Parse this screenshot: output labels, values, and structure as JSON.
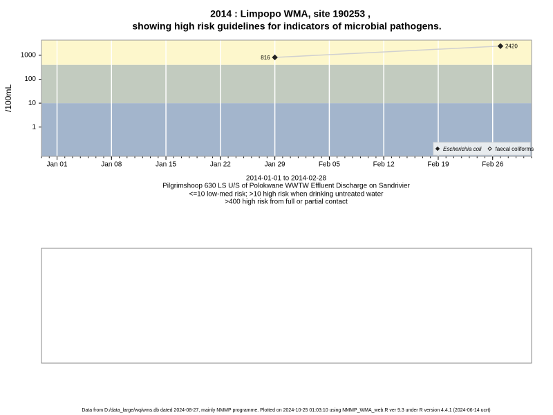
{
  "chart_data": {
    "type": "line",
    "title": [
      "2014 : Limpopo WMA, site 190253 ,",
      "showing high risk guidelines for indicators of microbial pathogens."
    ],
    "y_label": "/100mL",
    "subtitle": [
      "2014-01-01 to 2014-02-28",
      "Pilgrimshoop 630 LS U/S of Polokwane WWTW Effluent Discharge on Sandrivier",
      "<=10 low-med risk; >10 high risk when drinking untreated water",
      ">400 high risk from full or partial contact"
    ],
    "footer": "Data from D:/data_large/wq/wms.db dated 2024-08-27, mainly NMMP programme. Plotted on 2024-10-25 01:03:10 using NMMP_WMA_web.R ver 9.3 under R version 4.4.1 (2024-06-14 ucrt)",
    "x": [
      "2014-01-29",
      "2014-02-27"
    ],
    "series": [
      {
        "name": "Escherichia coli",
        "color": "#222222",
        "line_color": "#d0d0d0",
        "marker": "filled-diamond",
        "values": [
          816,
          2420
        ]
      },
      {
        "name": "faecal coliforms",
        "color": "#222222",
        "marker": "open-diamond",
        "values": [
          null,
          null
        ]
      }
    ],
    "xlim": [
      "2013-12-30",
      "2014-03-03"
    ],
    "xticks": [
      {
        "value": "2014-01-01",
        "label": "Jan 01"
      },
      {
        "value": "2014-01-08",
        "label": "Jan 08"
      },
      {
        "value": "2014-01-15",
        "label": "Jan 15"
      },
      {
        "value": "2014-01-22",
        "label": "Jan 22"
      },
      {
        "value": "2014-01-29",
        "label": "Jan 29"
      },
      {
        "value": "2014-02-05",
        "label": "Feb 05"
      },
      {
        "value": "2014-02-12",
        "label": "Feb 12"
      },
      {
        "value": "2014-02-19",
        "label": "Feb 19"
      },
      {
        "value": "2014-02-26",
        "label": "Feb 26"
      }
    ],
    "ylim": [
      0.06,
      4300
    ],
    "yticks": [
      1,
      10,
      100,
      1000
    ],
    "log_y": true,
    "grid": true,
    "thresholds": [
      10,
      400
    ],
    "band_colors": [
      "#a3b5cc",
      "#c2cbbf",
      "#fdf7cc"
    ],
    "legend_position": "bottom-right"
  }
}
